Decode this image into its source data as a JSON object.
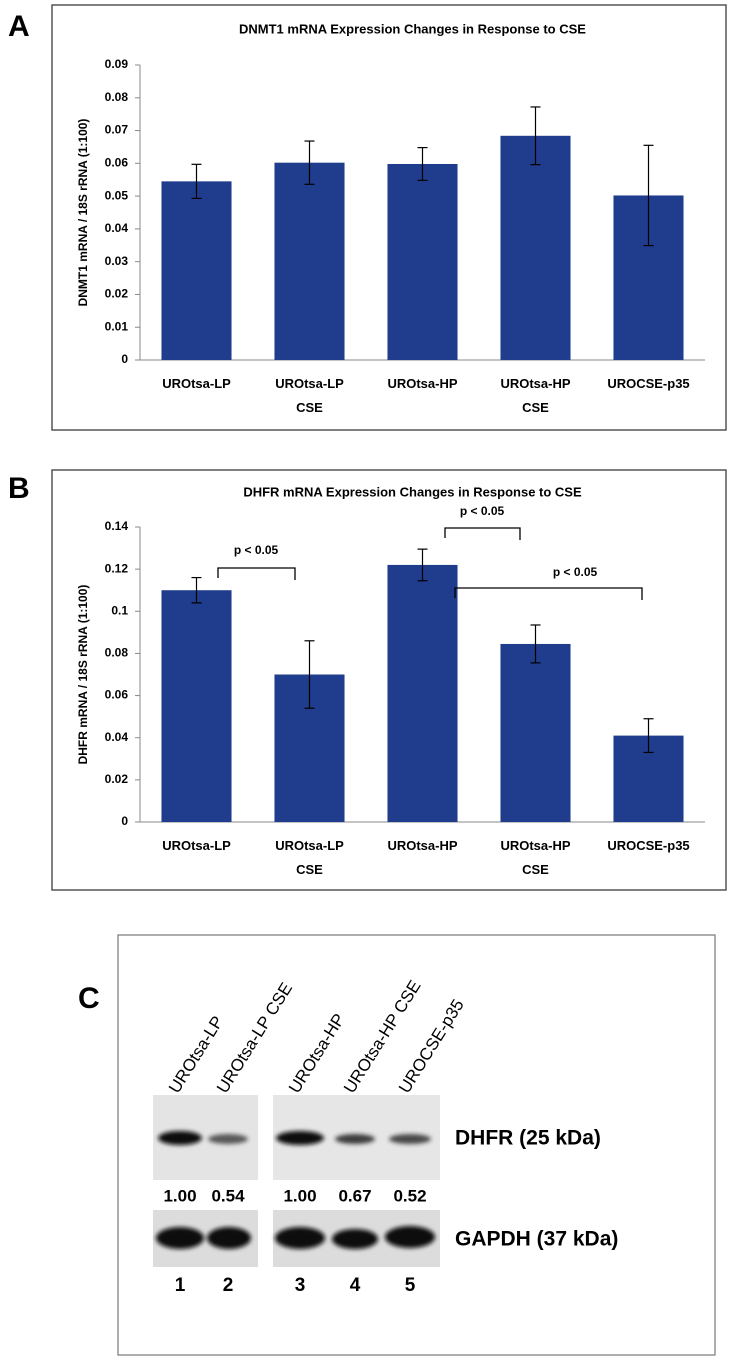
{
  "chart_data": [
    {
      "type": "bar",
      "panel_label": "A",
      "title": "DNMT1 mRNA Expression Changes in Response to CSE",
      "ylabel": "DNMT1 mRNA / 18S rRNA (1:100)",
      "categories": [
        "UROtsa-LP",
        "UROtsa-LP CSE",
        "UROtsa-HP",
        "UROtsa-HP CSE",
        "UROCSE-p35"
      ],
      "values": [
        0.0545,
        0.0602,
        0.0598,
        0.0684,
        0.0502
      ],
      "errors": [
        0.0052,
        0.0066,
        0.005,
        0.0088,
        0.0153
      ],
      "color": "#1f3d8c",
      "ylim": [
        0,
        0.09
      ],
      "yticks": [
        0,
        0.01,
        0.02,
        0.03,
        0.04,
        0.05,
        0.06,
        0.07,
        0.08,
        0.09
      ],
      "grid": false
    },
    {
      "type": "bar",
      "panel_label": "B",
      "title": "DHFR mRNA Expression Changes in Response to CSE",
      "ylabel": "DHFR mRNA / 18S rRNA (1:100)",
      "categories": [
        "UROtsa-LP",
        "UROtsa-LP CSE",
        "UROtsa-HP",
        "UROtsa-HP CSE",
        "UROCSE-p35"
      ],
      "values": [
        0.11,
        0.07,
        0.122,
        0.0845,
        0.041
      ],
      "errors": [
        0.006,
        0.016,
        0.0075,
        0.009,
        0.008
      ],
      "color": "#1f3d8c",
      "ylim": [
        0,
        0.14
      ],
      "yticks": [
        0,
        0.02,
        0.04,
        0.06,
        0.08,
        0.1,
        0.12,
        0.14
      ],
      "grid": false,
      "annotations": [
        "p < 0.05",
        "p < 0.05",
        "p < 0.05"
      ]
    }
  ],
  "blot": {
    "panel_label": "C",
    "lanes": [
      "UROtsa-LP",
      "UROtsa-LP CSE",
      "UROtsa-HP",
      "UROtsa-HP CSE",
      "UROCSE-p35"
    ],
    "dhfr_label": "DHFR (25 kDa)",
    "gapdh_label": "GAPDH (37 kDa)",
    "dhfr_ratios": [
      "1.00",
      "0.54",
      "1.00",
      "0.67",
      "0.52"
    ],
    "lane_numbers": [
      "1",
      "2",
      "3",
      "4",
      "5"
    ]
  }
}
